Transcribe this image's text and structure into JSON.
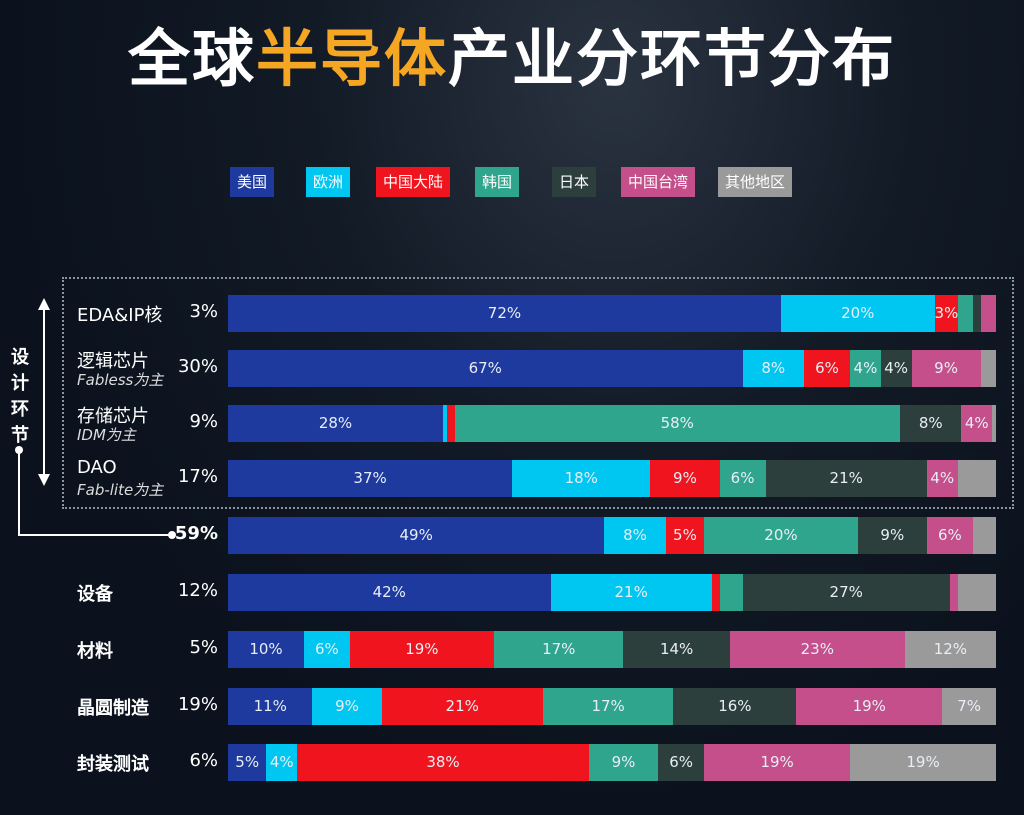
{
  "title": {
    "part1": "全球",
    "highlight": "半导体",
    "part2": "产业分环节分布"
  },
  "chart_data": {
    "type": "bar",
    "orientation": "horizontal",
    "stacked": true,
    "title": "全球半导体产业分环节分布",
    "xlim": [
      0,
      100
    ],
    "legend_position": "top",
    "series": [
      {
        "name": "美国",
        "color": "#1e3a9e"
      },
      {
        "name": "欧洲",
        "color": "#00c6f2"
      },
      {
        "name": "中国大陆",
        "color": "#f0141e"
      },
      {
        "name": "韩国",
        "color": "#2fa58e"
      },
      {
        "name": "日本",
        "color": "#2d3f3c"
      },
      {
        "name": "中国台湾",
        "color": "#c44f8a"
      },
      {
        "name": "其他地区",
        "color": "#9a9a9a"
      }
    ],
    "group_label": "设计环节",
    "rows": [
      {
        "label": "EDA&IP核",
        "sub": "",
        "share": "3%",
        "values": [
          72,
          20,
          3,
          2,
          1,
          2,
          0
        ],
        "labels": [
          "72%",
          "20%",
          "3%",
          "",
          "",
          "",
          ""
        ]
      },
      {
        "label": "逻辑芯片",
        "sub": "Fabless为主",
        "share": "30%",
        "values": [
          67,
          8,
          6,
          4,
          4,
          9,
          2
        ],
        "labels": [
          "67%",
          "8%",
          "6%",
          "4%",
          "4%",
          "9%",
          ""
        ]
      },
      {
        "label": "存储芯片",
        "sub": "IDM为主",
        "share": "9%",
        "values": [
          28,
          0.5,
          1,
          58,
          8,
          4,
          0.5
        ],
        "labels": [
          "28%",
          "",
          "",
          "58%",
          "8%",
          "4%",
          ""
        ]
      },
      {
        "label": "DAO",
        "sub": "Fab-lite为主",
        "share": "17%",
        "values": [
          37,
          18,
          9,
          6,
          21,
          4,
          5
        ],
        "labels": [
          "37%",
          "18%",
          "9%",
          "6%",
          "21%",
          "4%",
          ""
        ]
      },
      {
        "label": "",
        "sub": "",
        "share": "59%",
        "values": [
          49,
          8,
          5,
          20,
          9,
          6,
          3
        ],
        "labels": [
          "49%",
          "8%",
          "5%",
          "20%",
          "9%",
          "6%",
          ""
        ]
      },
      {
        "label": "设备",
        "sub": "",
        "share": "12%",
        "values": [
          42,
          21,
          1,
          3,
          27,
          1,
          5
        ],
        "labels": [
          "42%",
          "21%",
          "",
          "",
          "27%",
          "",
          ""
        ]
      },
      {
        "label": "材料",
        "sub": "",
        "share": "5%",
        "values": [
          10,
          6,
          19,
          17,
          14,
          23,
          12
        ],
        "labels": [
          "10%",
          "6%",
          "19%",
          "17%",
          "14%",
          "23%",
          "12%"
        ]
      },
      {
        "label": "晶圆制造",
        "sub": "",
        "share": "19%",
        "values": [
          11,
          9,
          21,
          17,
          16,
          19,
          7
        ],
        "labels": [
          "11%",
          "9%",
          "21%",
          "17%",
          "16%",
          "19%",
          "7%"
        ]
      },
      {
        "label": "封装测试",
        "sub": "",
        "share": "6%",
        "values": [
          5,
          4,
          38,
          9,
          6,
          19,
          19
        ],
        "labels": [
          "5%",
          "4%",
          "38%",
          "9%",
          "6%",
          "19%",
          "19%"
        ]
      }
    ]
  }
}
